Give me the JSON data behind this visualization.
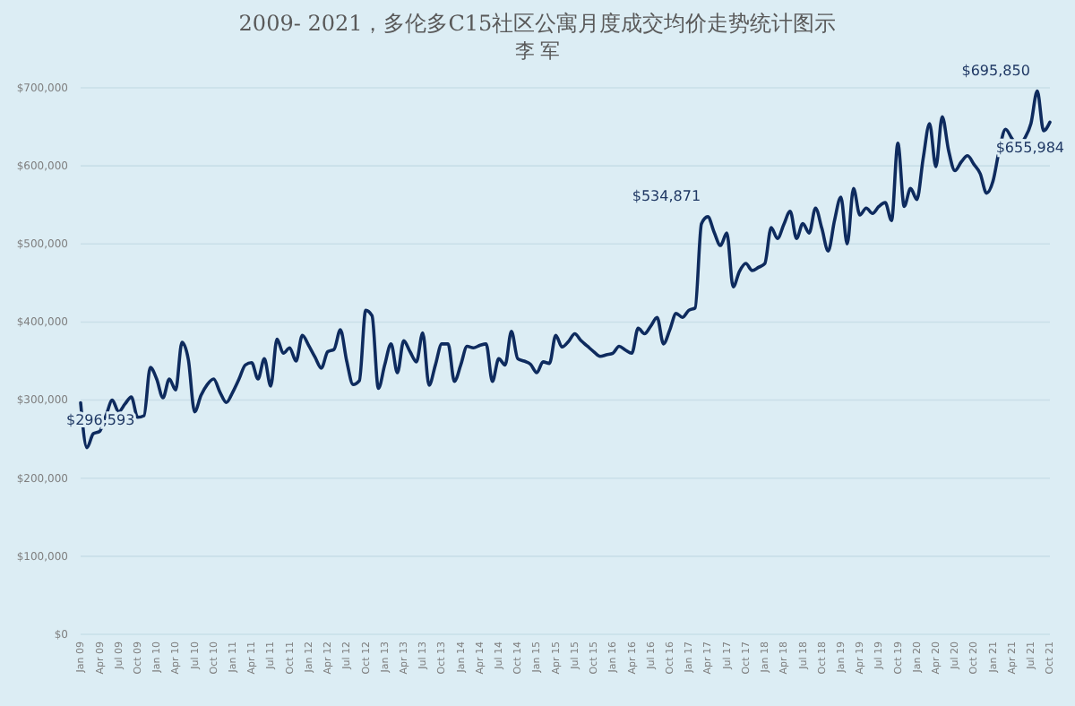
{
  "chart_data": {
    "type": "line",
    "title": "2009- 2021，多伦多C15社区公寓月度成交均价走势统计图示",
    "subtitle": "李 军",
    "categories": [
      "Jan 09",
      null,
      null,
      "Apr 09",
      null,
      null,
      "Jul 09",
      null,
      null,
      "Oct 09",
      null,
      null,
      "Jan 10",
      null,
      null,
      "Apr 10",
      null,
      null,
      "Jul 10",
      null,
      null,
      "Oct 10",
      null,
      null,
      "Jan 11",
      null,
      null,
      "Apr 11",
      null,
      null,
      "Jul 11",
      null,
      null,
      "Oct 11",
      null,
      null,
      "Jan 12",
      null,
      null,
      "Apr 12",
      null,
      null,
      "Jul 12",
      null,
      null,
      "Oct 12",
      null,
      null,
      "Jan 13",
      null,
      null,
      "Apr 13",
      null,
      null,
      "Jul 13",
      null,
      null,
      "Oct 13",
      null,
      null,
      "Jan 14",
      null,
      null,
      "Apr 14",
      null,
      null,
      "Jul 14",
      null,
      null,
      "Oct 14",
      null,
      null,
      "Jan 15",
      null,
      null,
      "Apr 15",
      null,
      null,
      "Jul 15",
      null,
      null,
      "Oct 15",
      null,
      null,
      "Jan 16",
      null,
      null,
      "Apr 16",
      null,
      null,
      "Jul 16",
      null,
      null,
      "Oct 16",
      null,
      null,
      "Jan 17",
      null,
      null,
      "Apr 17",
      null,
      null,
      "Jul 17",
      null,
      null,
      "Oct 17",
      null,
      null,
      "Jan 18",
      null,
      null,
      "Apr 18",
      null,
      null,
      "Jul 18",
      null,
      null,
      "Oct 18",
      null,
      null,
      "Jan 19",
      null,
      null,
      "Apr 19",
      null,
      null,
      "Jul 19",
      null,
      null,
      "Oct 19",
      null,
      null,
      "Jan 20",
      null,
      null,
      "Apr 20",
      null,
      null,
      "Jul 20",
      null,
      null,
      "Oct 20",
      null,
      null,
      "Jan 21",
      null,
      null,
      "Apr 21",
      null,
      null,
      "Jul 21",
      null,
      null,
      "Oct 21"
    ],
    "series": [
      {
        "color": "#0e2b5e",
        "values": [
          296593,
          239000,
          257000,
          260000,
          280000,
          300000,
          285000,
          295000,
          304000,
          278000,
          280000,
          342000,
          327000,
          303000,
          327000,
          313000,
          374000,
          352000,
          285000,
          306000,
          320000,
          327000,
          310000,
          297000,
          310000,
          327000,
          345000,
          348000,
          327000,
          353000,
          318000,
          378000,
          360000,
          367000,
          350000,
          383000,
          370000,
          355000,
          341000,
          362000,
          365000,
          390000,
          350000,
          320000,
          325000,
          415000,
          408000,
          315000,
          345000,
          372000,
          335000,
          376000,
          362000,
          349000,
          386000,
          319000,
          345000,
          372000,
          372000,
          324000,
          345000,
          369000,
          367000,
          370000,
          372000,
          324000,
          353000,
          345000,
          388000,
          353000,
          350000,
          346000,
          335000,
          349000,
          347000,
          383000,
          368000,
          375000,
          385000,
          376000,
          369000,
          362000,
          356000,
          358000,
          360000,
          369000,
          364000,
          360000,
          392000,
          385000,
          395000,
          406000,
          372000,
          390000,
          411000,
          406000,
          415000,
          418000,
          526000,
          534871,
          515000,
          498000,
          514000,
          445000,
          465000,
          475000,
          466000,
          470000,
          475000,
          521000,
          507000,
          525000,
          542000,
          507000,
          526000,
          514000,
          546000,
          520000,
          491000,
          530000,
          560000,
          500000,
          571000,
          537000,
          546000,
          539000,
          548000,
          553000,
          530000,
          629000,
          548000,
          571000,
          557000,
          610000,
          654000,
          599000,
          663000,
          620000,
          594000,
          605000,
          613000,
          602000,
          590000,
          565000,
          580000,
          620000,
          647000,
          635000,
          624000,
          635000,
          654000,
          695850,
          645000,
          655984
        ],
        "value_labels": [
          "$296,593",
          null,
          null,
          null,
          null,
          null,
          null,
          null,
          null,
          null,
          null,
          null,
          null,
          null,
          null,
          null,
          null,
          null,
          null,
          null,
          null,
          null,
          null,
          null,
          null,
          null,
          null,
          null,
          null,
          null,
          null,
          null,
          null,
          null,
          null,
          null,
          null,
          null,
          null,
          null,
          null,
          null,
          null,
          null,
          null,
          null,
          null,
          null,
          null,
          null,
          null,
          null,
          null,
          null,
          null,
          null,
          null,
          null,
          null,
          null,
          null,
          null,
          null,
          null,
          null,
          null,
          null,
          null,
          null,
          null,
          null,
          null,
          null,
          null,
          null,
          null,
          null,
          null,
          null,
          null,
          null,
          null,
          null,
          null,
          null,
          null,
          null,
          null,
          null,
          null,
          null,
          null,
          null,
          null,
          null,
          null,
          null,
          null,
          null,
          "$534,871",
          null,
          null,
          null,
          null,
          null,
          null,
          null,
          null,
          null,
          null,
          null,
          null,
          null,
          null,
          null,
          null,
          null,
          null,
          null,
          null,
          null,
          null,
          null,
          null,
          null,
          null,
          null,
          null,
          null,
          null,
          null,
          null,
          null,
          null,
          null,
          null,
          null,
          null,
          null,
          null,
          null,
          null,
          null,
          null,
          null,
          null,
          null,
          null,
          null,
          null,
          null,
          "$695,850",
          null,
          "$655,984"
        ]
      }
    ],
    "ylim": [
      0,
      700000
    ],
    "yticks": [
      {
        "value": 0,
        "label": "$0"
      },
      {
        "value": 100000,
        "label": "$100,000"
      },
      {
        "value": 200000,
        "label": "$200,000"
      },
      {
        "value": 300000,
        "label": "$300,000"
      },
      {
        "value": 400000,
        "label": "$400,000"
      },
      {
        "value": 500000,
        "label": "$500,000"
      },
      {
        "value": 600000,
        "label": "$600,000"
      },
      {
        "value": 700000,
        "label": "$700,000"
      }
    ],
    "grid": "y",
    "line_style": "solid",
    "marker": "none"
  }
}
